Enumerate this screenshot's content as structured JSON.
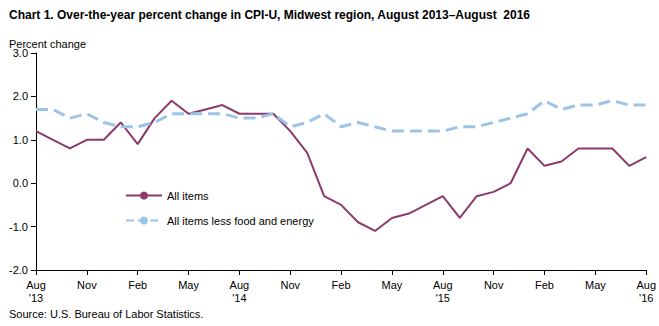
{
  "chart_data": {
    "type": "line",
    "title": "Chart 1. Over-the-year percent change in CPI-U, Midwest region, August 2013–August  2016",
    "y_label": "Percent change",
    "source": "Source: U.S. Bureau of Labor Statistics.",
    "categories": [
      "Aug\n'13",
      null,
      null,
      "Nov",
      null,
      null,
      "Feb",
      null,
      null,
      "May",
      null,
      null,
      "Aug\n'14",
      null,
      null,
      "Nov",
      null,
      null,
      "Feb",
      null,
      null,
      "May",
      null,
      null,
      "Aug\n'15",
      null,
      null,
      "Nov",
      null,
      null,
      "Feb",
      null,
      null,
      "May",
      null,
      null,
      "Aug\n'16"
    ],
    "series": [
      {
        "name": "All items",
        "color": "#8c3a6b",
        "line_style": "solid",
        "values": [
          1.2,
          1.0,
          0.8,
          1.0,
          1.0,
          1.4,
          0.9,
          1.5,
          1.9,
          1.6,
          1.7,
          1.8,
          1.6,
          1.6,
          1.6,
          1.2,
          0.7,
          -0.3,
          -0.5,
          -0.9,
          -1.1,
          -0.8,
          -0.7,
          -0.5,
          -0.3,
          -0.8,
          -0.3,
          -0.2,
          0.0,
          0.8,
          0.4,
          0.5,
          0.8,
          0.8,
          0.8,
          0.4,
          0.6
        ]
      },
      {
        "name": "All items less food and energy",
        "color": "#9dc3e6",
        "line_style": "dashed",
        "values": [
          1.7,
          1.7,
          1.5,
          1.6,
          1.4,
          1.3,
          1.3,
          1.4,
          1.6,
          1.6,
          1.6,
          1.6,
          1.5,
          1.5,
          1.6,
          1.3,
          1.4,
          1.6,
          1.3,
          1.4,
          1.3,
          1.2,
          1.2,
          1.2,
          1.2,
          1.3,
          1.3,
          1.4,
          1.5,
          1.6,
          1.9,
          1.7,
          1.8,
          1.8,
          1.9,
          1.8,
          1.8
        ]
      }
    ],
    "ylim": [
      -2,
      3
    ],
    "yticks": [
      {
        "value": -2,
        "label": "-2.0"
      },
      {
        "value": -1,
        "label": "-1.0"
      },
      {
        "value": 0,
        "label": "0.0"
      },
      {
        "value": 1,
        "label": "1.0"
      },
      {
        "value": 2,
        "label": "2.0"
      },
      {
        "value": 3,
        "label": "3.0"
      }
    ],
    "grid": false,
    "legend": "lower left"
  }
}
